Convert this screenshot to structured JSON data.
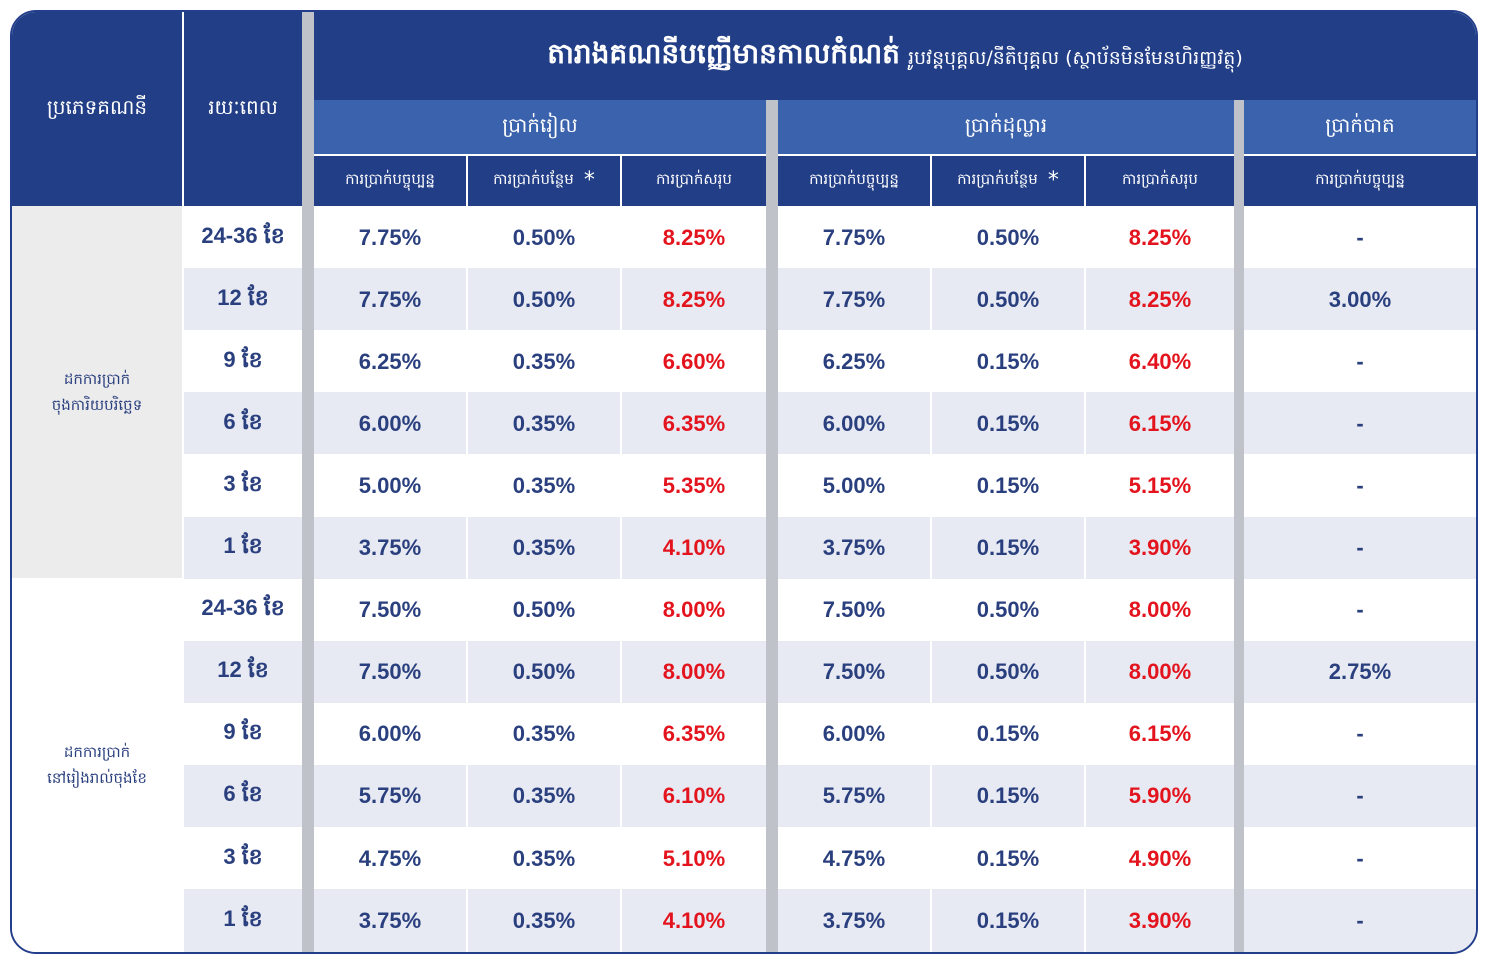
{
  "header": {
    "title": "តារាងគណនីបញ្ញើមានកាលកំណត់",
    "subtitle": "រូបវន្តបុគ្គល/នីតិបុគ្គល (ស្ថាប័នមិនមែនហិរញ្ញវត្ថុ)",
    "col_account_type": "ប្រភេទគណនី",
    "col_term": "រយៈពេល",
    "groups": [
      "ប្រាក់រៀល",
      "ប្រាក់ដុល្លារ",
      "ប្រាក់បាត"
    ],
    "sub_current": "ការប្រាក់បច្ចុប្បន្ន",
    "sub_bonus": "ការប្រាក់បន្ថែម",
    "sub_total": "ការប្រាក់សរុប",
    "star": "*"
  },
  "account_groups": [
    {
      "label_line1": "ដកការប្រាក់",
      "label_line2": "ចុងការិយបរិច្ឆេទ"
    },
    {
      "label_line1": "ដកការប្រាក់",
      "label_line2": "នៅរៀងរាល់ចុងខែ"
    }
  ],
  "rows": [
    {
      "term": "24-36 ខែ",
      "khr_cur": "7.75%",
      "khr_bonus": "0.50%",
      "khr_total": "8.25%",
      "usd_cur": "7.75%",
      "usd_bonus": "0.50%",
      "usd_total": "8.25%",
      "thb_cur": "-"
    },
    {
      "term": "12 ខែ",
      "khr_cur": "7.75%",
      "khr_bonus": "0.50%",
      "khr_total": "8.25%",
      "usd_cur": "7.75%",
      "usd_bonus": "0.50%",
      "usd_total": "8.25%",
      "thb_cur": "3.00%"
    },
    {
      "term": "9 ខែ",
      "khr_cur": "6.25%",
      "khr_bonus": "0.35%",
      "khr_total": "6.60%",
      "usd_cur": "6.25%",
      "usd_bonus": "0.15%",
      "usd_total": "6.40%",
      "thb_cur": "-"
    },
    {
      "term": "6 ខែ",
      "khr_cur": "6.00%",
      "khr_bonus": "0.35%",
      "khr_total": "6.35%",
      "usd_cur": "6.00%",
      "usd_bonus": "0.15%",
      "usd_total": "6.15%",
      "thb_cur": "-"
    },
    {
      "term": "3 ខែ",
      "khr_cur": "5.00%",
      "khr_bonus": "0.35%",
      "khr_total": "5.35%",
      "usd_cur": "5.00%",
      "usd_bonus": "0.15%",
      "usd_total": "5.15%",
      "thb_cur": "-"
    },
    {
      "term": "1 ខែ",
      "khr_cur": "3.75%",
      "khr_bonus": "0.35%",
      "khr_total": "4.10%",
      "usd_cur": "3.75%",
      "usd_bonus": "0.15%",
      "usd_total": "3.90%",
      "thb_cur": "-"
    },
    {
      "term": "24-36 ខែ",
      "khr_cur": "7.50%",
      "khr_bonus": "0.50%",
      "khr_total": "8.00%",
      "usd_cur": "7.50%",
      "usd_bonus": "0.50%",
      "usd_total": "8.00%",
      "thb_cur": "-"
    },
    {
      "term": "12 ខែ",
      "khr_cur": "7.50%",
      "khr_bonus": "0.50%",
      "khr_total": "8.00%",
      "usd_cur": "7.50%",
      "usd_bonus": "0.50%",
      "usd_total": "8.00%",
      "thb_cur": "2.75%"
    },
    {
      "term": "9 ខែ",
      "khr_cur": "6.00%",
      "khr_bonus": "0.35%",
      "khr_total": "6.35%",
      "usd_cur": "6.00%",
      "usd_bonus": "0.15%",
      "usd_total": "6.15%",
      "thb_cur": "-"
    },
    {
      "term": "6 ខែ",
      "khr_cur": "5.75%",
      "khr_bonus": "0.35%",
      "khr_total": "6.10%",
      "usd_cur": "5.75%",
      "usd_bonus": "0.15%",
      "usd_total": "5.90%",
      "thb_cur": "-"
    },
    {
      "term": "3 ខែ",
      "khr_cur": "4.75%",
      "khr_bonus": "0.35%",
      "khr_total": "5.10%",
      "usd_cur": "4.75%",
      "usd_bonus": "0.15%",
      "usd_total": "4.90%",
      "thb_cur": "-"
    },
    {
      "term": "1 ខែ",
      "khr_cur": "3.75%",
      "khr_bonus": "0.35%",
      "khr_total": "4.10%",
      "usd_cur": "3.75%",
      "usd_bonus": "0.15%",
      "usd_total": "3.90%",
      "thb_cur": "-"
    }
  ],
  "colors": {
    "navy": "#223e87",
    "mid_blue": "#3a62ad",
    "text_blue": "#2a3f7e",
    "red": "#e3141d",
    "band": "#e7eaf3",
    "separator": "#bfc3c9"
  }
}
